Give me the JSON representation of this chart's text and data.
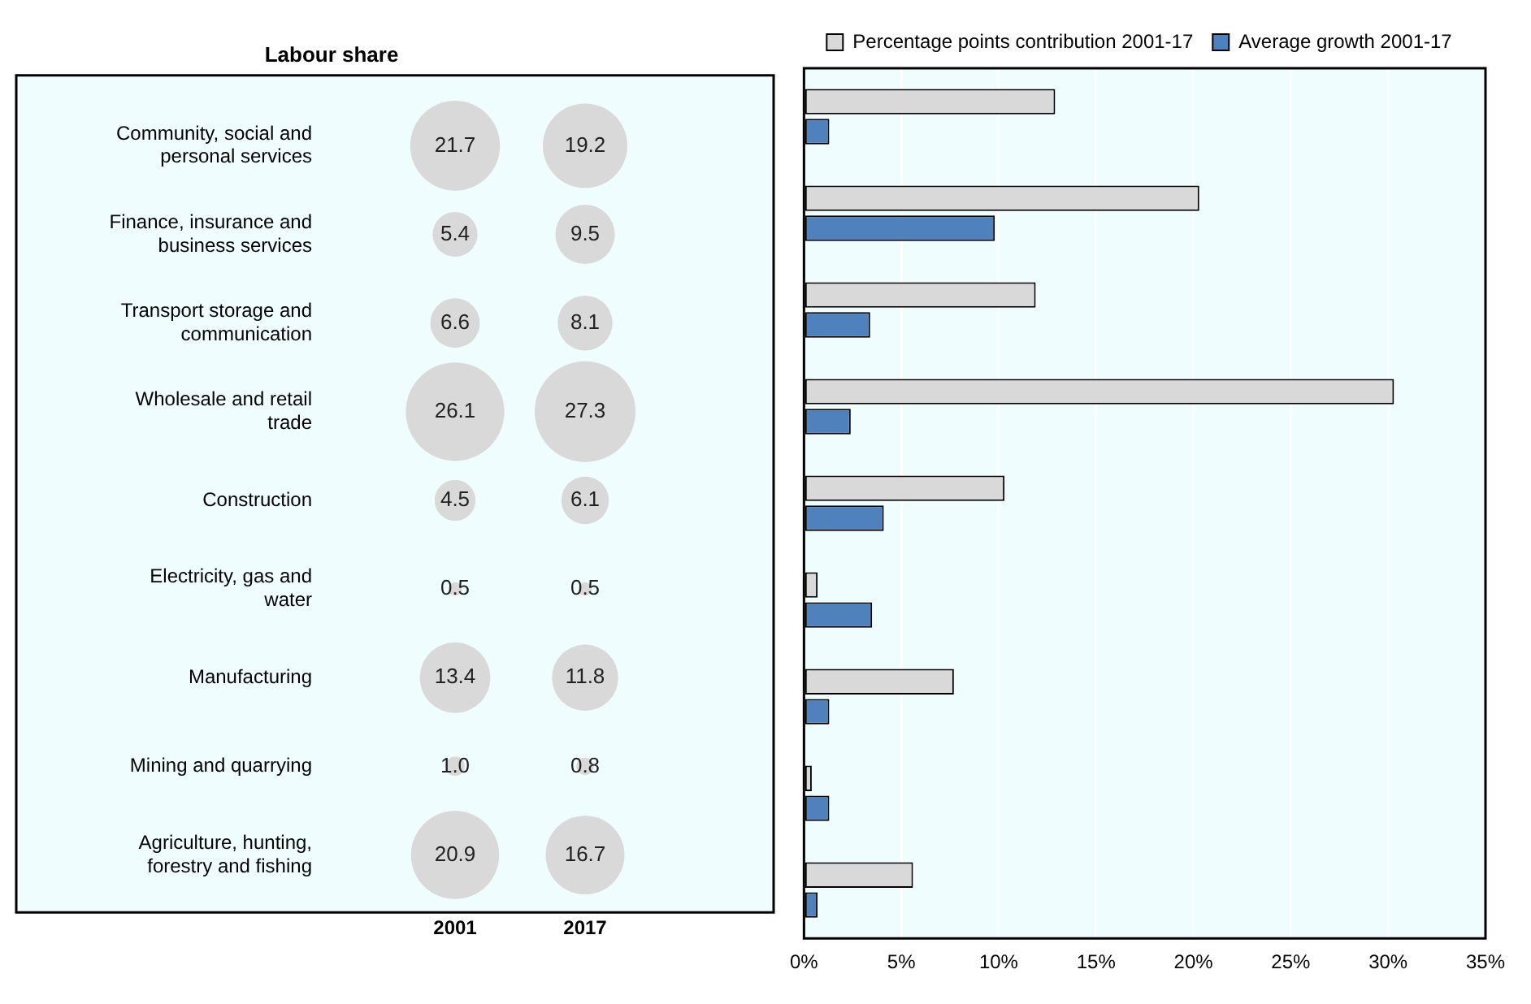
{
  "chart_data": [
    {
      "type": "other",
      "title": "Labour share",
      "categories": [
        "Community, social and personal services",
        "Finance, insurance and business services",
        "Transport storage and communication",
        "Wholesale and retail trade",
        "Construction",
        "Electricity, gas and water",
        "Manufacturing",
        "Mining and quarrying",
        "Agriculture, hunting, forestry and fishing"
      ],
      "series": [
        {
          "name": "2001",
          "color": "#d9d9d9",
          "values": [
            21.7,
            5.4,
            6.6,
            26.1,
            4.5,
            0.5,
            13.4,
            1.0,
            20.9
          ],
          "value_labels": [
            "21.7",
            "5.4",
            "6.6",
            "26.1",
            "4.5",
            "0.5",
            "13.4",
            "1.0",
            "20.9"
          ]
        },
        {
          "name": "2017",
          "color": "#d9d9d9",
          "values": [
            19.2,
            9.5,
            8.1,
            27.3,
            6.1,
            0.5,
            11.8,
            0.8,
            16.7
          ],
          "value_labels": [
            "19.2",
            "9.5",
            "8.1",
            "27.3",
            "6.1",
            "0.5",
            "11.8",
            "0.8",
            "16.7"
          ]
        }
      ]
    },
    {
      "type": "bar",
      "orientation": "horizontal",
      "categories": [
        null,
        null,
        null,
        null,
        null,
        null,
        null,
        null,
        null
      ],
      "series": [
        {
          "name": "Percentage points contribution 2001-17",
          "color": "#d9d9d9",
          "values": [
            12.9,
            20.3,
            11.9,
            30.3,
            10.3,
            0.7,
            7.7,
            0.4,
            5.6
          ]
        },
        {
          "name": "Average growth 2001-17",
          "color": "#4f81bd",
          "values": [
            1.3,
            9.8,
            3.4,
            2.4,
            4.1,
            3.5,
            1.3,
            1.3,
            0.7
          ]
        }
      ],
      "xlim": [
        0,
        35
      ],
      "xticks": [
        {
          "value": 0,
          "label": "0%"
        },
        {
          "value": 5,
          "label": "5%"
        },
        {
          "value": 10,
          "label": "10%"
        },
        {
          "value": 15,
          "label": "15%"
        },
        {
          "value": 20,
          "label": "20%"
        },
        {
          "value": 25,
          "label": "25%"
        },
        {
          "value": 30,
          "label": "30%"
        },
        {
          "value": 35,
          "label": "35%"
        }
      ],
      "grid": "x",
      "legend": "top",
      "tick_labels": "x"
    }
  ]
}
